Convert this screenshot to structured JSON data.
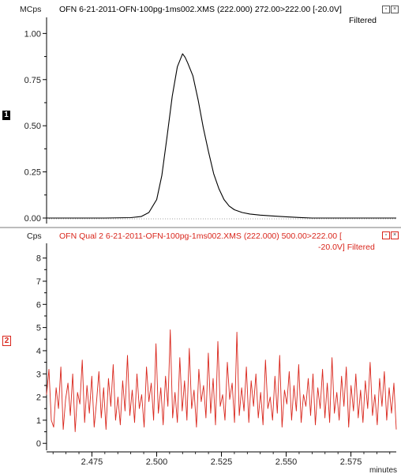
{
  "panels": [
    {
      "marker": "1",
      "unit": "MCps",
      "title": "OFN 6-21-2011-OFN-100pg-1ms002.XMS (222.000)  272.00>222.00 [-20.0V]",
      "subtitle": "Filtered",
      "color": "#000000",
      "marker_style": {
        "bg": "#000000",
        "fg": "#ffffff"
      }
    },
    {
      "marker": "2",
      "unit": "Cps",
      "title": "OFN  Qual 2 6-21-2011-OFN-100pg-1ms002.XMS (222.000)  500.00>222.00 [",
      "subtitle": "-20.0V] Filtered",
      "color": "#d9261c",
      "marker_style": {
        "bg": "#ffffff",
        "fg": "#d9261c"
      }
    }
  ],
  "x_axis_label": "minutes",
  "window_icons": [
    "restore-icon",
    "close-icon"
  ],
  "chart_data": [
    {
      "type": "line",
      "xlim": [
        2.4575,
        2.5925
      ],
      "ylim": [
        -0.03,
        1.07
      ],
      "y_ticks": [
        0.0,
        0.25,
        0.5,
        0.75,
        1.0
      ],
      "y_tick_labels": [
        "0.00",
        "0.25",
        "0.50",
        "0.75",
        "1.00"
      ],
      "ylabel": "MCps",
      "series": [
        {
          "x": [
            2.4575,
            2.48,
            2.49,
            2.494,
            2.497,
            2.5,
            2.502,
            2.504,
            2.506,
            2.508,
            2.51,
            2.511,
            2.512,
            2.514,
            2.516,
            2.518,
            2.52,
            2.522,
            2.524,
            2.526,
            2.528,
            2.53,
            2.533,
            2.536,
            2.54,
            2.545,
            2.55,
            2.555,
            2.56,
            2.5925
          ],
          "y": [
            0.0,
            0.0,
            0.002,
            0.008,
            0.03,
            0.1,
            0.23,
            0.44,
            0.66,
            0.82,
            0.89,
            0.87,
            0.84,
            0.77,
            0.64,
            0.49,
            0.36,
            0.24,
            0.16,
            0.1,
            0.065,
            0.045,
            0.03,
            0.022,
            0.016,
            0.011,
            0.007,
            0.003,
            0.0,
            0.0
          ]
        }
      ]
    },
    {
      "type": "line",
      "xlim": [
        2.4575,
        2.5925
      ],
      "ylim": [
        -0.3,
        8.5
      ],
      "y_ticks": [
        0,
        1,
        2,
        3,
        4,
        5,
        6,
        7,
        8
      ],
      "y_tick_labels": [
        "0",
        "1",
        "2",
        "3",
        "4",
        "5",
        "6",
        "7",
        "8"
      ],
      "ylabel": "Cps",
      "x_ticks": [
        2.475,
        2.5,
        2.525,
        2.55,
        2.575
      ],
      "x_tick_labels": [
        "2.475",
        "2.500",
        "2.525",
        "2.550",
        "2.575"
      ],
      "xlabel": "minutes",
      "series": [
        {
          "x_start": 2.4575,
          "x_end": 2.5925,
          "y": [
            2.1,
            3.2,
            1.0,
            0.7,
            2.4,
            1.5,
            3.3,
            0.6,
            1.9,
            2.6,
            1.2,
            3.0,
            0.5,
            2.2,
            1.7,
            3.6,
            0.9,
            2.5,
            1.3,
            2.9,
            0.7,
            1.8,
            3.1,
            1.1,
            2.4,
            0.6,
            2.8,
            1.6,
            3.4,
            1.0,
            2.0,
            0.8,
            2.7,
            1.4,
            3.8,
            1.2,
            2.3,
            0.9,
            3.0,
            1.5,
            2.1,
            0.7,
            3.3,
            1.8,
            2.6,
            1.0,
            4.3,
            1.3,
            2.4,
            0.8,
            2.9,
            1.6,
            4.9,
            1.1,
            2.2,
            0.9,
            3.7,
            1.4,
            2.7,
            1.0,
            4.1,
            1.5,
            2.3,
            0.7,
            3.2,
            1.8,
            2.5,
            1.1,
            3.9,
            1.3,
            2.8,
            0.8,
            4.4,
            1.6,
            2.1,
            1.0,
            3.5,
            1.9,
            2.6,
            0.9,
            4.8,
            1.2,
            2.4,
            1.4,
            3.3,
            0.9,
            2.7,
            1.6,
            3.0,
            1.1,
            2.2,
            0.8,
            3.6,
            1.5,
            2.0,
            1.0,
            2.9,
            1.3,
            3.8,
            0.7,
            2.3,
            1.7,
            3.1,
            1.0,
            2.5,
            1.4,
            3.4,
            0.9,
            2.1,
            1.6,
            2.8,
            1.2,
            3.0,
            0.8,
            2.4,
            1.5,
            3.2,
            1.1,
            2.6,
            0.9,
            3.7,
            1.3,
            2.2,
            1.0,
            2.9,
            1.6,
            3.3,
            0.7,
            2.5,
            1.4,
            3.0,
            1.1,
            2.3,
            0.9,
            2.7,
            1.5,
            3.5,
            1.2,
            2.1,
            0.8,
            2.8,
            1.6,
            3.1,
            1.0,
            2.4,
            1.3,
            2.6,
            0.6
          ]
        }
      ]
    }
  ]
}
